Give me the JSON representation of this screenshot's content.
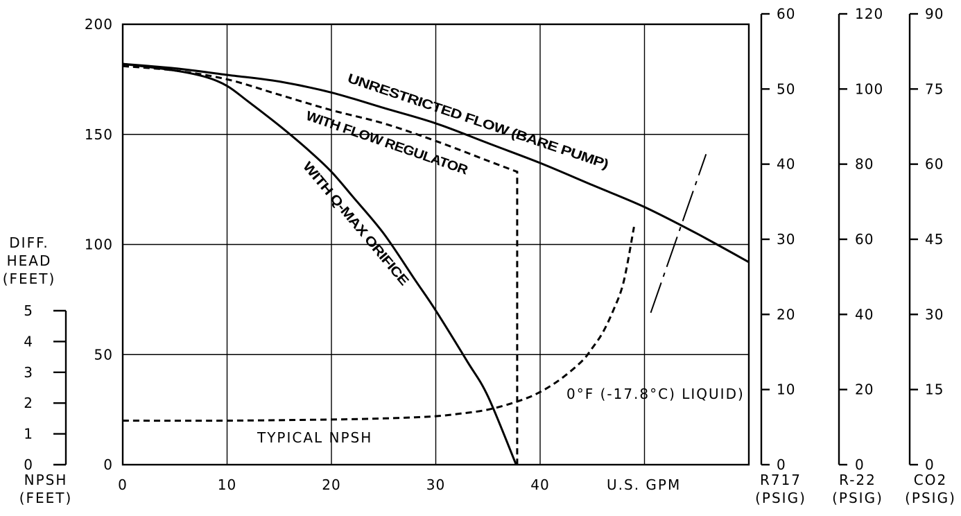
{
  "chart_data": {
    "type": "line",
    "x_axis": {
      "ticks": [
        "0",
        "10",
        "20",
        "30",
        "40"
      ],
      "tick_values": [
        0,
        10,
        20,
        30,
        40
      ],
      "label": "U.S. GPM",
      "range": [
        0,
        60
      ]
    },
    "y_axis": {
      "label_lines": [
        "DIFF.",
        "HEAD",
        "(FEET)"
      ],
      "ticks": [
        "0",
        "50",
        "100",
        "150",
        "200"
      ],
      "tick_values": [
        0,
        50,
        100,
        150,
        200
      ],
      "range": [
        0,
        200
      ]
    },
    "npsh_axis": {
      "label_lines": [
        "NPSH",
        "(FEET)"
      ],
      "ticks": [
        "0",
        "1",
        "2",
        "3",
        "4",
        "5"
      ],
      "tick_values": [
        0,
        1,
        2,
        3,
        4,
        5
      ]
    },
    "right_axes": [
      {
        "label_lines": [
          "R717",
          "(PSIG)"
        ],
        "ticks": [
          "0",
          "10",
          "20",
          "30",
          "40",
          "50",
          "60"
        ],
        "max": 60
      },
      {
        "label_lines": [
          "R-22",
          "(PSIG)"
        ],
        "ticks": [
          "0",
          "20",
          "40",
          "60",
          "80",
          "100",
          "120"
        ],
        "max": 120
      },
      {
        "label_lines": [
          "CO2",
          "(PSIG)"
        ],
        "ticks": [
          "0",
          "15",
          "30",
          "45",
          "60",
          "75",
          "90"
        ],
        "max": 90
      }
    ],
    "grid": true,
    "series": [
      {
        "name": "UNRESTRICTED FLOW (BARE PUMP)",
        "style": "solid",
        "x": [
          0,
          5,
          10,
          15,
          20,
          25,
          30,
          35,
          40,
          45,
          50,
          55,
          60
        ],
        "y": [
          182,
          180,
          177,
          174,
          169,
          162,
          155,
          146,
          137,
          127,
          117,
          105,
          92
        ]
      },
      {
        "name": "WITH FLOW REGULATOR",
        "style": "dashed",
        "x": [
          0,
          5,
          10,
          15,
          20,
          25,
          30,
          35,
          37.8,
          37.8
        ],
        "y": [
          181,
          179,
          175,
          168,
          161,
          155,
          147,
          138,
          133,
          0
        ]
      },
      {
        "name": "WITH Q-MAX ORIFICE",
        "style": "solid",
        "x": [
          0,
          5,
          8,
          10,
          12,
          15,
          18,
          20,
          22,
          25,
          28,
          30,
          33,
          35,
          37.7
        ],
        "y": [
          182,
          179,
          176,
          172,
          165,
          154,
          142,
          133,
          122,
          105,
          84,
          70,
          47,
          31,
          0
        ]
      },
      {
        "name": "TYPICAL NPSH",
        "style": "dashed",
        "x": [
          0,
          10,
          20,
          25,
          28,
          30,
          32,
          35,
          38,
          40,
          42,
          44,
          45,
          46,
          47,
          48,
          49
        ],
        "y": [
          20,
          20,
          20.5,
          21,
          21.5,
          22,
          23,
          25,
          29,
          33,
          39,
          47,
          53,
          60,
          70,
          83,
          108
        ]
      }
    ],
    "annotations": [
      "0°F (-17.8°C) LIQUID)"
    ],
    "annotation_line": {
      "x": [
        50.6,
        55.9
      ],
      "y": [
        69,
        141
      ]
    }
  }
}
